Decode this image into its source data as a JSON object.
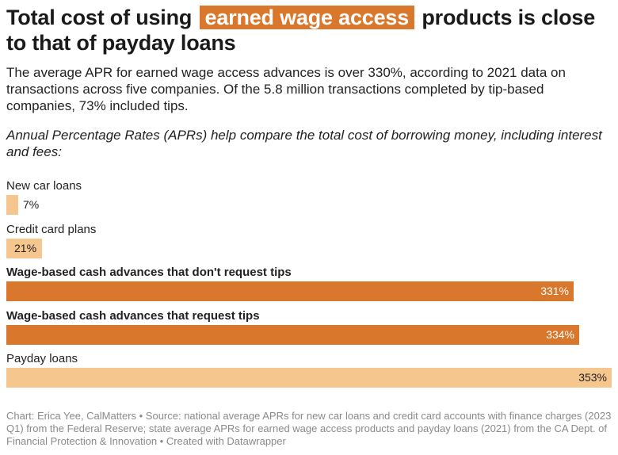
{
  "title": {
    "before": "Total cost of using ",
    "highlight": "earned wage access",
    "after": " products is close to that of payday loans"
  },
  "subtitle": "The average APR for earned wage access advances is over 330%, according to 2021 data on transactions across five companies. Of the 5.8 million transactions completed by tip-based companies, 73% included tips.",
  "intro": "Annual Percentage Rates (APRs) help compare the total cost of borrowing money, including interest and fees:",
  "colors": {
    "highlight": "#d9782c",
    "light_bar": "#f6c68f",
    "dark_bar": "#d9782c"
  },
  "chart_data": {
    "type": "bar",
    "orientation": "horizontal",
    "categories": [
      "New car loans",
      "Credit card plans",
      "Wage-based cash advances that don't request tips",
      "Wage-based cash advances that request tips",
      "Payday loans"
    ],
    "values": [
      7,
      21,
      331,
      334,
      353
    ],
    "value_labels": [
      "7%",
      "21%",
      "331%",
      "334%",
      "353%"
    ],
    "highlighted": [
      false,
      false,
      true,
      true,
      false
    ],
    "xlim": [
      0,
      353
    ],
    "grid": false
  },
  "footer": "Chart: Erica Yee, CalMatters • Source: national average APRs for new car loans and credit card accounts with finance charges (2023 Q1) from the Federal Reserve; state average APRs for earned wage access products and payday loans (2021) from the CA Dept. of Financial Protection & Innovation • Created with Datawrapper"
}
